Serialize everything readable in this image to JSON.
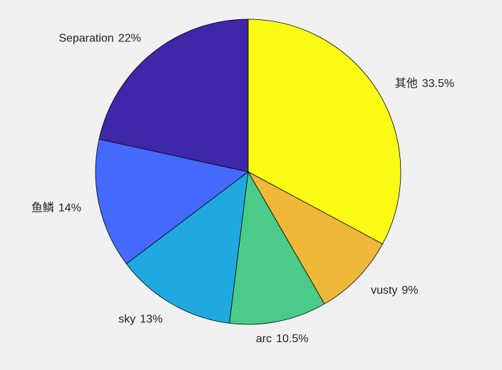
{
  "chart_data": {
    "type": "pie",
    "categories": [
      "其他",
      "vusty",
      "arc",
      "sky",
      "鱼鳞",
      "Separation"
    ],
    "values": [
      33.5,
      9,
      10.5,
      13,
      14,
      22
    ],
    "value_labels": [
      "33.5%",
      "9%",
      "10.5%",
      "13%",
      "14%",
      "22%"
    ],
    "colors": [
      "#f9fb15",
      "#efb838",
      "#4acb89",
      "#1fa9e0",
      "#4569fd",
      "#3e27a9"
    ]
  }
}
